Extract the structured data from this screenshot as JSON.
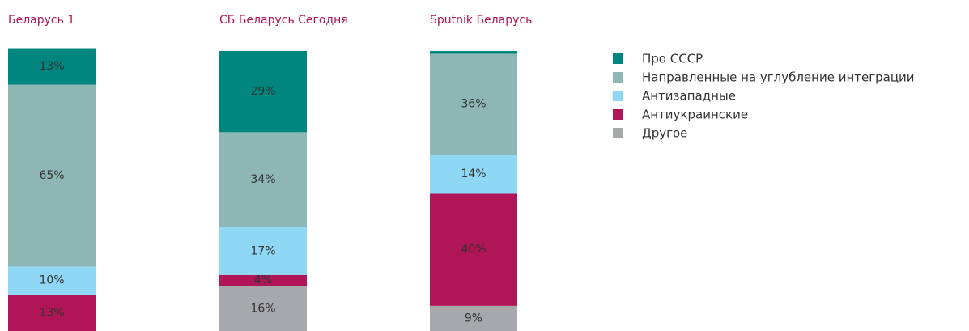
{
  "chart_data": {
    "type": "bar",
    "stacked": true,
    "categories": [
      "Беларусь 1",
      "СБ Беларусь Сегодня",
      "Sputnik Беларусь"
    ],
    "ylim": [
      0,
      100
    ],
    "series": [
      {
        "name": "Про СССР",
        "color": "#00857f",
        "values": [
          13,
          29,
          1
        ],
        "value_labels": [
          "13%",
          "29%",
          null
        ]
      },
      {
        "name": "Направленные на углубление интеграции",
        "color": "#8db6b5",
        "values": [
          65,
          34,
          36
        ],
        "value_labels": [
          "65%",
          "34%",
          "36%"
        ]
      },
      {
        "name": "Антизападные",
        "color": "#8fd8f5",
        "values": [
          10,
          17,
          14
        ],
        "value_labels": [
          "10%",
          "17%",
          "14%"
        ]
      },
      {
        "name": "Антиукраинские",
        "color": "#b01657",
        "values": [
          13,
          4,
          40
        ],
        "value_labels": [
          "13%",
          "4%",
          "40%"
        ]
      },
      {
        "name": "Другое",
        "color": "#a7a8ab",
        "values": [
          0,
          16,
          9
        ],
        "value_labels": [
          null,
          "16%",
          "9%"
        ]
      }
    ]
  }
}
